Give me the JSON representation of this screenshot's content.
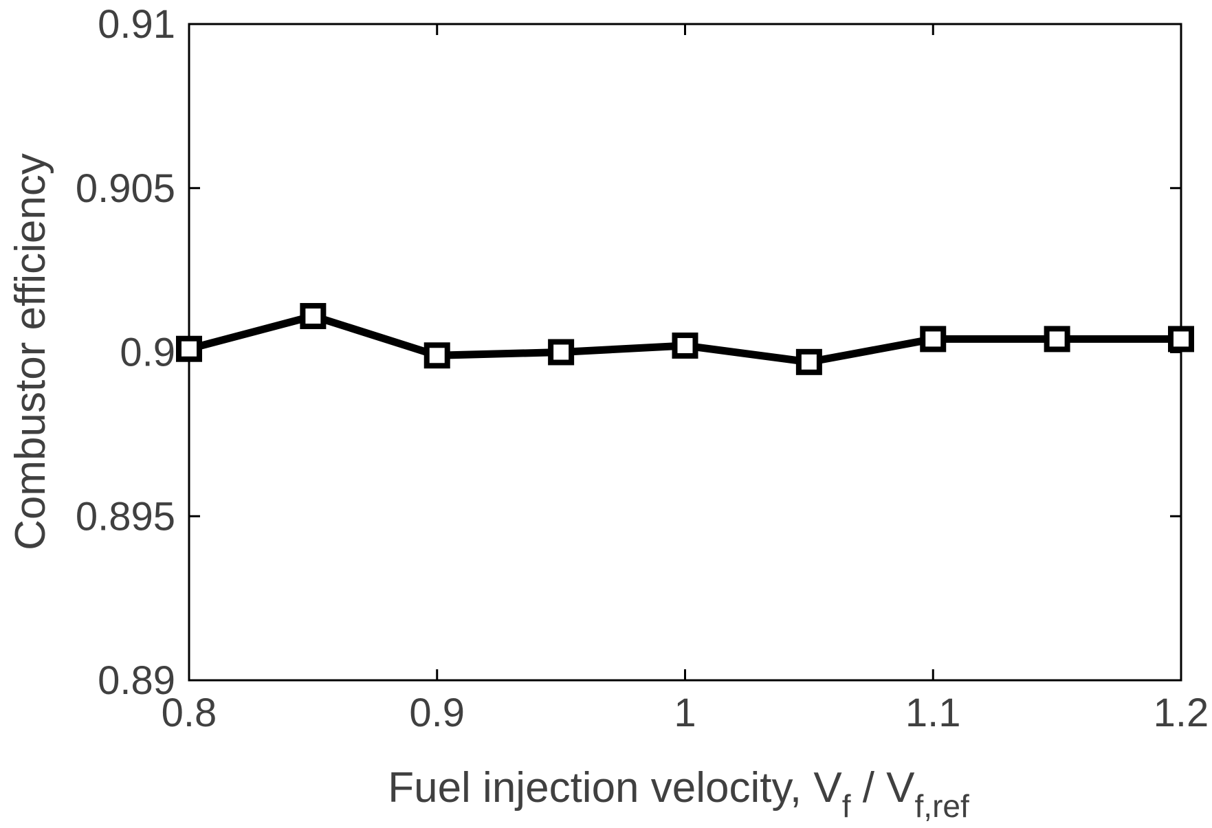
{
  "chart_data": {
    "type": "line",
    "title": "",
    "xlabel": {
      "main": "Fuel injection velocity, V",
      "sub1": "f",
      "sep": " / V",
      "sub2": "f,ref"
    },
    "ylabel": "Combustor efficiency",
    "xlim": [
      0.8,
      1.2
    ],
    "ylim": [
      0.89,
      0.91
    ],
    "xticks": [
      0.8,
      0.9,
      1.0,
      1.1,
      1.2
    ],
    "xtick_labels": [
      "0.8",
      "0.9",
      "1",
      "1.1",
      "1.2"
    ],
    "yticks": [
      0.89,
      0.895,
      0.9,
      0.905,
      0.91
    ],
    "ytick_labels": [
      "0.89",
      "0.895",
      "0.9",
      "0.905",
      "0.91"
    ],
    "grid": false,
    "series": [
      {
        "name": "Combustor efficiency",
        "marker": "square",
        "x": [
          0.8,
          0.85,
          0.9,
          0.95,
          1.0,
          1.05,
          1.1,
          1.15,
          1.2
        ],
        "y": [
          0.9001,
          0.9011,
          0.8999,
          0.9,
          0.9002,
          0.8997,
          0.9004,
          0.9004,
          0.9004
        ]
      }
    ],
    "colors": {
      "line": "#000000",
      "axis": "#000000",
      "text": "#404040",
      "marker_fill": "#ffffff"
    }
  }
}
